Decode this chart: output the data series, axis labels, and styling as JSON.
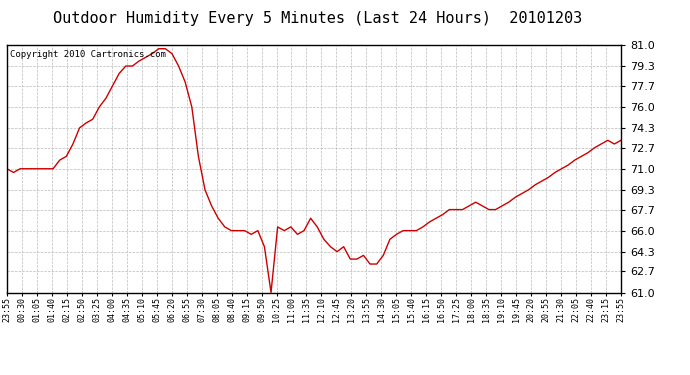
{
  "title": "Outdoor Humidity Every 5 Minutes (Last 24 Hours)  20101203",
  "copyright_text": "Copyright 2010 Cartronics.com",
  "line_color": "#cc0000",
  "background_color": "#ffffff",
  "grid_color": "#bbbbbb",
  "ylim": [
    61.0,
    81.0
  ],
  "yticks": [
    61.0,
    62.7,
    64.3,
    66.0,
    67.7,
    69.3,
    71.0,
    72.7,
    74.3,
    76.0,
    77.7,
    79.3,
    81.0
  ],
  "x_labels": [
    "23:55",
    "00:30",
    "01:05",
    "01:40",
    "02:15",
    "02:50",
    "03:25",
    "04:00",
    "04:35",
    "05:10",
    "05:45",
    "06:20",
    "06:55",
    "07:30",
    "08:05",
    "08:40",
    "09:15",
    "09:50",
    "10:25",
    "11:00",
    "11:35",
    "12:10",
    "12:45",
    "13:20",
    "13:55",
    "14:30",
    "15:05",
    "15:40",
    "16:15",
    "16:50",
    "17:25",
    "18:00",
    "18:35",
    "19:10",
    "19:45",
    "20:20",
    "20:55",
    "21:30",
    "22:05",
    "22:40",
    "23:15",
    "23:55"
  ],
  "humidity_data": [
    [
      0,
      71.0
    ],
    [
      1,
      70.7
    ],
    [
      2,
      71.0
    ],
    [
      3,
      71.0
    ],
    [
      4,
      71.0
    ],
    [
      5,
      71.0
    ],
    [
      6,
      71.0
    ],
    [
      7,
      71.0
    ],
    [
      8,
      71.7
    ],
    [
      9,
      72.0
    ],
    [
      10,
      73.0
    ],
    [
      11,
      74.3
    ],
    [
      12,
      74.7
    ],
    [
      13,
      75.0
    ],
    [
      14,
      76.0
    ],
    [
      15,
      76.7
    ],
    [
      16,
      77.7
    ],
    [
      17,
      78.7
    ],
    [
      18,
      79.3
    ],
    [
      19,
      79.3
    ],
    [
      20,
      79.7
    ],
    [
      21,
      80.0
    ],
    [
      22,
      80.3
    ],
    [
      23,
      80.7
    ],
    [
      24,
      80.7
    ],
    [
      25,
      80.3
    ],
    [
      26,
      79.3
    ],
    [
      27,
      78.0
    ],
    [
      28,
      76.0
    ],
    [
      29,
      72.0
    ],
    [
      30,
      69.3
    ],
    [
      31,
      68.0
    ],
    [
      32,
      67.0
    ],
    [
      33,
      66.3
    ],
    [
      34,
      66.0
    ],
    [
      35,
      66.0
    ],
    [
      36,
      66.0
    ],
    [
      37,
      65.7
    ],
    [
      38,
      66.0
    ],
    [
      39,
      64.7
    ],
    [
      40,
      61.0
    ],
    [
      41,
      66.3
    ],
    [
      42,
      66.0
    ],
    [
      43,
      66.3
    ],
    [
      44,
      65.7
    ],
    [
      45,
      66.0
    ],
    [
      46,
      67.0
    ],
    [
      47,
      66.3
    ],
    [
      48,
      65.3
    ],
    [
      49,
      64.7
    ],
    [
      50,
      64.3
    ],
    [
      51,
      64.7
    ],
    [
      52,
      63.7
    ],
    [
      53,
      63.7
    ],
    [
      54,
      64.0
    ],
    [
      55,
      63.3
    ],
    [
      56,
      63.3
    ],
    [
      57,
      64.0
    ],
    [
      58,
      65.3
    ],
    [
      59,
      65.7
    ],
    [
      60,
      66.0
    ],
    [
      61,
      66.0
    ],
    [
      62,
      66.0
    ],
    [
      63,
      66.3
    ],
    [
      64,
      66.7
    ],
    [
      65,
      67.0
    ],
    [
      66,
      67.3
    ],
    [
      67,
      67.7
    ],
    [
      68,
      67.7
    ],
    [
      69,
      67.7
    ],
    [
      70,
      68.0
    ],
    [
      71,
      68.3
    ],
    [
      72,
      68.0
    ],
    [
      73,
      67.7
    ],
    [
      74,
      67.7
    ],
    [
      75,
      68.0
    ],
    [
      76,
      68.3
    ],
    [
      77,
      68.7
    ],
    [
      78,
      69.0
    ],
    [
      79,
      69.3
    ],
    [
      80,
      69.7
    ],
    [
      81,
      70.0
    ],
    [
      82,
      70.3
    ],
    [
      83,
      70.7
    ],
    [
      84,
      71.0
    ],
    [
      85,
      71.3
    ],
    [
      86,
      71.7
    ],
    [
      87,
      72.0
    ],
    [
      88,
      72.3
    ],
    [
      89,
      72.7
    ],
    [
      90,
      73.0
    ],
    [
      91,
      73.3
    ],
    [
      92,
      73.0
    ],
    [
      93,
      73.3
    ]
  ],
  "title_fontsize": 11,
  "copyright_fontsize": 6.5,
  "ytick_fontsize": 8,
  "xtick_fontsize": 6
}
